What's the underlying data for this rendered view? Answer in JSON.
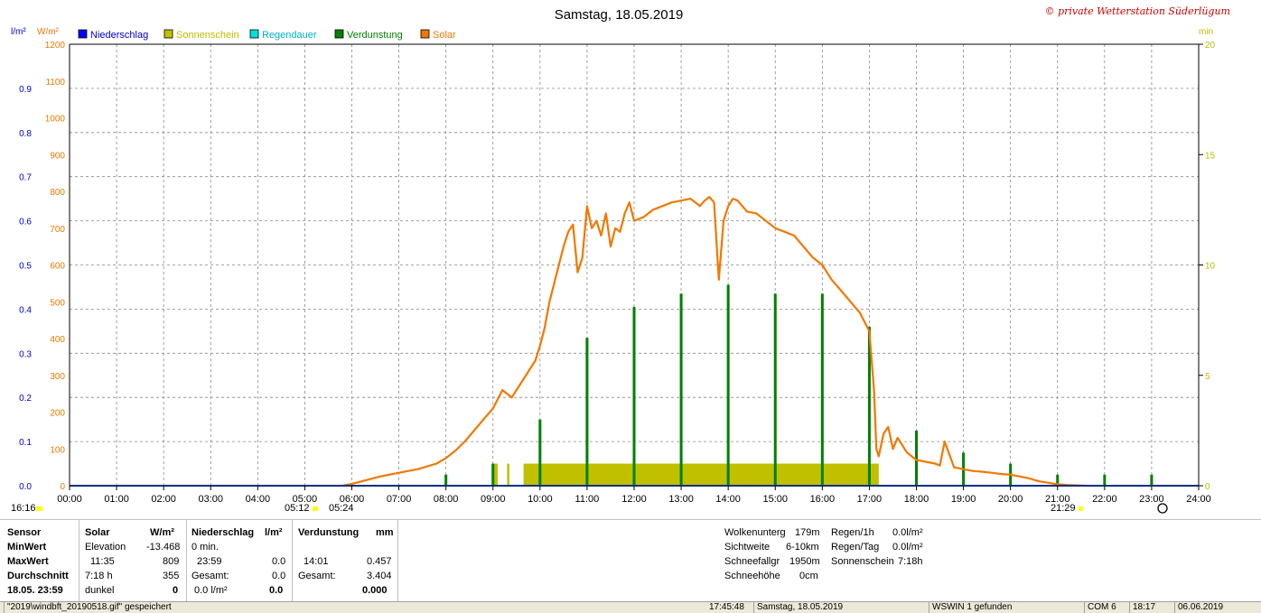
{
  "chart_data": {
    "type": "line",
    "title": "Samstag, 18.05.2019",
    "watermark": "© private Wetterstation Süderlügum",
    "x_ticks": [
      "00:00",
      "01:00",
      "02:00",
      "03:00",
      "04:00",
      "05:00",
      "06:00",
      "07:00",
      "08:00",
      "09:00",
      "10:00",
      "11:00",
      "12:00",
      "13:00",
      "14:00",
      "15:00",
      "16:00",
      "17:00",
      "18:00",
      "19:00",
      "20:00",
      "21:00",
      "22:00",
      "23:00",
      "24:00"
    ],
    "y_left_unit": "l/m²",
    "y_left_ticks": [
      "0.0",
      "0.1",
      "0.2",
      "0.3",
      "0.4",
      "0.5",
      "0.6",
      "0.7",
      "0.8",
      "0.9"
    ],
    "y_left_range": [
      0,
      1.0
    ],
    "y_solar_unit": "W/m²",
    "y_solar_ticks": [
      "0",
      "100",
      "200",
      "300",
      "400",
      "500",
      "600",
      "700",
      "800",
      "900",
      "1000",
      "1100",
      "1200"
    ],
    "y_solar_range": [
      0,
      1200
    ],
    "y_right_unit": "min",
    "y_right_ticks": [
      "0",
      "5",
      "10",
      "15",
      "20"
    ],
    "y_right_range": [
      0,
      20
    ],
    "legend": [
      {
        "name": "Niederschlag",
        "color": "#0000ff"
      },
      {
        "name": "Sonnenschein",
        "color": "#c0c000"
      },
      {
        "name": "Regendauer",
        "color": "#00e0e0"
      },
      {
        "name": "Verdunstung",
        "color": "#008000"
      },
      {
        "name": "Solar",
        "color": "#f07800"
      }
    ],
    "solar_series": {
      "name": "Solar",
      "color": "#f07800",
      "x_hours": [
        5.8,
        6.0,
        6.3,
        6.6,
        7.0,
        7.4,
        7.8,
        8.0,
        8.2,
        8.4,
        8.6,
        8.8,
        9.0,
        9.2,
        9.4,
        9.6,
        9.7,
        9.8,
        9.9,
        10.0,
        10.1,
        10.2,
        10.3,
        10.4,
        10.5,
        10.6,
        10.7,
        10.8,
        10.9,
        11.0,
        11.1,
        11.2,
        11.3,
        11.4,
        11.5,
        11.6,
        11.7,
        11.8,
        11.9,
        12.0,
        12.2,
        12.4,
        12.6,
        12.8,
        13.0,
        13.2,
        13.4,
        13.5,
        13.6,
        13.7,
        13.8,
        13.9,
        14.0,
        14.1,
        14.2,
        14.3,
        14.4,
        14.6,
        14.8,
        15.0,
        15.2,
        15.4,
        15.6,
        15.8,
        16.0,
        16.2,
        16.4,
        16.6,
        16.8,
        17.0,
        17.1,
        17.15,
        17.2,
        17.3,
        17.4,
        17.5,
        17.6,
        17.7,
        17.8,
        17.9,
        18.0,
        18.2,
        18.4,
        18.5,
        18.6,
        18.8,
        19.0,
        19.2,
        19.4,
        19.6,
        19.8,
        20.0,
        20.2,
        20.4,
        20.6,
        20.8,
        21.0,
        21.2,
        21.4,
        21.6
      ],
      "y": [
        0,
        5,
        15,
        25,
        35,
        45,
        60,
        75,
        95,
        120,
        150,
        180,
        210,
        260,
        240,
        280,
        300,
        320,
        340,
        380,
        430,
        500,
        550,
        600,
        650,
        690,
        710,
        580,
        620,
        760,
        700,
        720,
        680,
        740,
        650,
        700,
        690,
        740,
        770,
        720,
        730,
        750,
        760,
        770,
        775,
        780,
        760,
        775,
        785,
        770,
        560,
        720,
        760,
        780,
        775,
        760,
        745,
        740,
        720,
        700,
        690,
        680,
        650,
        620,
        600,
        560,
        530,
        500,
        470,
        420,
        260,
        100,
        80,
        140,
        160,
        100,
        130,
        110,
        90,
        80,
        70,
        65,
        60,
        55,
        120,
        50,
        45,
        40,
        38,
        35,
        32,
        30,
        25,
        20,
        12,
        8,
        4,
        2,
        1,
        0
      ]
    },
    "verdunstung_series": {
      "name": "Verdunstung",
      "color": "#008000",
      "x_hours": [
        8.0,
        9.0,
        10.0,
        11.0,
        12.0,
        13.0,
        14.0,
        15.0,
        16.0,
        17.0,
        18.0,
        19.0,
        20.0,
        21.0,
        22.0,
        23.0
      ],
      "y_min": [
        0.5,
        1.0,
        3.0,
        6.7,
        8.1,
        8.7,
        9.1,
        8.7,
        8.7,
        7.2,
        2.5,
        1.5,
        1.0,
        0.5,
        0.5,
        0.5
      ]
    },
    "sonnenschein_bars": [
      {
        "from_h": 9.0,
        "to_h": 9.1
      },
      {
        "from_h": 9.3,
        "to_h": 9.35
      },
      {
        "from_h": 9.65,
        "to_h": 17.2
      }
    ],
    "sonnenschein_level_min": 1.0
  },
  "axis_annotations": {
    "left_bottom": "16:16",
    "sunrise_1": "05:12",
    "sunrise_2": "05:24",
    "sunset": "21:29"
  },
  "stats": {
    "col_sensor": {
      "header": "Sensor",
      "min": "MinWert",
      "max": "MaxWert",
      "avg": "Durchschnitt",
      "date": "18.05. 23:59"
    },
    "col_solar": {
      "header": "Solar",
      "unit": "W/m²",
      "min_label": "Elevation",
      "min_val": "-13.468",
      "max_time": "11:35",
      "max_val": "809",
      "avg_time": "7:18 h",
      "avg_val": "355",
      "cur_label": "dunkel",
      "cur_val": "0"
    },
    "col_nieder": {
      "header": "Niederschlag",
      "unit": "l/m²",
      "min_label": "0 min.",
      "max_time": "23:59",
      "max_val": "0.0",
      "avg_label": "Gesamt:",
      "avg_val": "0.0",
      "cur_label": "0.0 l/m²",
      "cur_val": "0.0"
    },
    "col_verd": {
      "header": "Verdunstung",
      "unit": "mm",
      "max_time": "14:01",
      "max_val": "0.457",
      "avg_label": "Gesamt:",
      "avg_val": "3.404",
      "cur_val": "0.000"
    },
    "weather": [
      {
        "label": "Wolkenunterg",
        "value": "179m"
      },
      {
        "label": "Sichtweite",
        "value": "6-10km"
      },
      {
        "label": "Schneefallgr",
        "value": "1950m"
      },
      {
        "label": "Schneehöhe",
        "value": "0cm"
      }
    ],
    "rain": [
      {
        "label": "Regen/1h",
        "value": "0.0l/m²"
      },
      {
        "label": "Regen/Tag",
        "value": "0.0l/m²"
      },
      {
        "label": "Sonnenschein",
        "value": "7:18h"
      }
    ]
  },
  "statusbar": {
    "file": "\"2019\\windbft_20190518.gif\" gespeichert",
    "time": "17:45:48",
    "date": "Samstag, 18.05.2019",
    "wswin": "WSWIN 1 gefunden",
    "com": "COM 6",
    "clock": "18:17",
    "today": "06.06.2019"
  }
}
